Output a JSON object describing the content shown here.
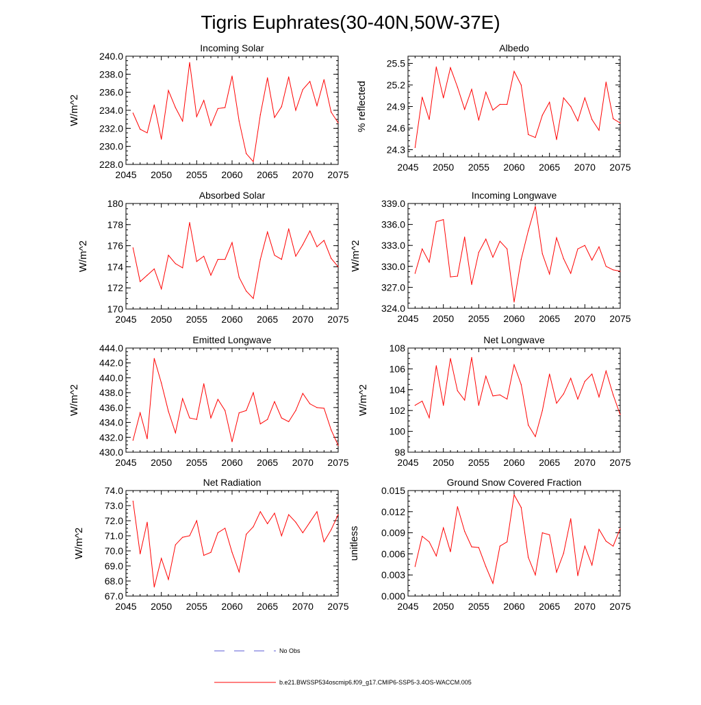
{
  "figure_title": "Tigris Euphrates(30-40N,50W-37E)",
  "legend": {
    "entries": [
      {
        "label": "No Obs",
        "color": "#5b5bd6",
        "style": "dashed"
      },
      {
        "label": "b.e21.BWSSP534oscmip6.f09_g17.CMIP6-SSP5-3.4OS-WACCM.005",
        "color": "#ff0000",
        "style": "solid"
      }
    ]
  },
  "chart_data": [
    {
      "type": "line",
      "title": "Incoming Solar",
      "ylabel": "W/m^2",
      "xlim": [
        2045,
        2075
      ],
      "ylim": [
        228.0,
        240.0
      ],
      "xticks": [
        2045,
        2050,
        2055,
        2060,
        2065,
        2070,
        2075
      ],
      "yticks": [
        228.0,
        230.0,
        232.0,
        234.0,
        236.0,
        238.0,
        240.0
      ],
      "ytick_labels": [
        "228.0",
        "230.0",
        "232.0",
        "234.0",
        "236.0",
        "238.0",
        "240.0"
      ],
      "x": [
        2046,
        2047,
        2048,
        2049,
        2050,
        2051,
        2052,
        2053,
        2054,
        2055,
        2056,
        2057,
        2058,
        2059,
        2060,
        2061,
        2062,
        2063,
        2064,
        2065,
        2066,
        2067,
        2068,
        2069,
        2070,
        2071,
        2072,
        2073,
        2074,
        2075
      ],
      "values": [
        233.7,
        231.9,
        231.5,
        234.6,
        230.8,
        236.2,
        234.3,
        232.8,
        239.3,
        233.3,
        235.1,
        232.3,
        234.2,
        234.3,
        237.8,
        232.8,
        229.2,
        228.3,
        233.5,
        237.6,
        233.2,
        234.4,
        237.7,
        234.0,
        236.3,
        237.2,
        234.5,
        237.4,
        233.8,
        232.6
      ]
    },
    {
      "type": "line",
      "title": "Albedo",
      "ylabel": "% reflected",
      "xlim": [
        2045,
        2075
      ],
      "ylim": [
        24.2,
        25.6
      ],
      "xticks": [
        2045,
        2050,
        2055,
        2060,
        2065,
        2070,
        2075
      ],
      "yticks": [
        24.3,
        24.6,
        24.9,
        25.2,
        25.5
      ],
      "ytick_labels": [
        "24.3",
        "24.6",
        "24.9",
        "25.2",
        "25.5"
      ],
      "x": [
        2046,
        2047,
        2048,
        2049,
        2050,
        2051,
        2052,
        2053,
        2054,
        2055,
        2056,
        2057,
        2058,
        2059,
        2060,
        2061,
        2062,
        2063,
        2064,
        2065,
        2066,
        2067,
        2068,
        2069,
        2070,
        2071,
        2072,
        2073,
        2074,
        2075
      ],
      "values": [
        24.33,
        25.03,
        24.72,
        25.45,
        25.02,
        25.44,
        25.17,
        24.86,
        25.14,
        24.71,
        25.1,
        24.85,
        24.93,
        24.93,
        25.39,
        25.2,
        24.51,
        24.47,
        24.78,
        24.96,
        24.44,
        25.02,
        24.9,
        24.7,
        25.02,
        24.72,
        24.57,
        25.24,
        24.73,
        24.67
      ]
    },
    {
      "type": "line",
      "title": "Absorbed Solar",
      "ylabel": "W/m^2",
      "xlim": [
        2045,
        2075
      ],
      "ylim": [
        170,
        180
      ],
      "xticks": [
        2045,
        2050,
        2055,
        2060,
        2065,
        2070,
        2075
      ],
      "yticks": [
        170,
        172,
        174,
        176,
        178,
        180
      ],
      "ytick_labels": [
        "170",
        "172",
        "174",
        "176",
        "178",
        "180"
      ],
      "x": [
        2046,
        2047,
        2048,
        2049,
        2050,
        2051,
        2052,
        2053,
        2054,
        2055,
        2056,
        2057,
        2058,
        2059,
        2060,
        2061,
        2062,
        2063,
        2064,
        2065,
        2066,
        2067,
        2068,
        2069,
        2070,
        2071,
        2072,
        2073,
        2074,
        2075
      ],
      "values": [
        175.8,
        172.6,
        173.2,
        173.8,
        171.9,
        175.1,
        174.3,
        173.9,
        178.2,
        174.5,
        175.0,
        173.2,
        174.7,
        174.7,
        176.3,
        173.0,
        171.7,
        171.0,
        174.7,
        177.3,
        175.1,
        174.7,
        177.6,
        175.0,
        176.1,
        177.4,
        175.9,
        176.5,
        174.8,
        174.0
      ]
    },
    {
      "type": "line",
      "title": "Incoming Longwave",
      "ylabel": "W/m^2",
      "xlim": [
        2045,
        2075
      ],
      "ylim": [
        324.0,
        339.0
      ],
      "xticks": [
        2045,
        2050,
        2055,
        2060,
        2065,
        2070,
        2075
      ],
      "yticks": [
        324.0,
        327.0,
        330.0,
        333.0,
        336.0,
        339.0
      ],
      "ytick_labels": [
        "324.0",
        "327.0",
        "330.0",
        "333.0",
        "336.0",
        "339.0"
      ],
      "x": [
        2046,
        2047,
        2048,
        2049,
        2050,
        2051,
        2052,
        2053,
        2054,
        2055,
        2056,
        2057,
        2058,
        2059,
        2060,
        2061,
        2062,
        2063,
        2064,
        2065,
        2066,
        2067,
        2068,
        2069,
        2070,
        2071,
        2072,
        2073,
        2074,
        2075
      ],
      "values": [
        329.0,
        332.5,
        330.6,
        336.4,
        336.7,
        328.5,
        328.6,
        334.2,
        327.4,
        332.0,
        333.9,
        331.3,
        333.6,
        332.5,
        324.9,
        331.0,
        335.1,
        338.6,
        331.8,
        328.9,
        334.1,
        331.1,
        329.0,
        332.5,
        333.0,
        330.9,
        332.8,
        330.0,
        329.5,
        329.3
      ]
    },
    {
      "type": "line",
      "title": "Emitted Longwave",
      "ylabel": "W/m^2",
      "xlim": [
        2045,
        2075
      ],
      "ylim": [
        430.0,
        444.0
      ],
      "xticks": [
        2045,
        2050,
        2055,
        2060,
        2065,
        2070,
        2075
      ],
      "yticks": [
        430.0,
        432.0,
        434.0,
        436.0,
        438.0,
        440.0,
        442.0,
        444.0
      ],
      "ytick_labels": [
        "430.0",
        "432.0",
        "434.0",
        "436.0",
        "438.0",
        "440.0",
        "442.0",
        "444.0"
      ],
      "x": [
        2046,
        2047,
        2048,
        2049,
        2050,
        2051,
        2052,
        2053,
        2054,
        2055,
        2056,
        2057,
        2058,
        2059,
        2060,
        2061,
        2062,
        2063,
        2064,
        2065,
        2066,
        2067,
        2068,
        2069,
        2070,
        2071,
        2072,
        2073,
        2074,
        2075
      ],
      "values": [
        431.6,
        435.3,
        431.8,
        442.6,
        439.3,
        435.5,
        432.6,
        437.2,
        434.6,
        434.4,
        439.2,
        434.6,
        437.1,
        435.6,
        431.4,
        435.3,
        435.6,
        438.0,
        433.8,
        434.4,
        436.8,
        434.6,
        434.1,
        435.6,
        437.9,
        436.5,
        436.0,
        435.9,
        433.0,
        430.9
      ]
    },
    {
      "type": "line",
      "title": "Net Longwave",
      "ylabel": "W/m^2",
      "xlim": [
        2045,
        2075
      ],
      "ylim": [
        98,
        108
      ],
      "xticks": [
        2045,
        2050,
        2055,
        2060,
        2065,
        2070,
        2075
      ],
      "yticks": [
        98,
        100,
        102,
        104,
        106,
        108
      ],
      "ytick_labels": [
        "98",
        "100",
        "102",
        "104",
        "106",
        "108"
      ],
      "x": [
        2046,
        2047,
        2048,
        2049,
        2050,
        2051,
        2052,
        2053,
        2054,
        2055,
        2056,
        2057,
        2058,
        2059,
        2060,
        2061,
        2062,
        2063,
        2064,
        2065,
        2066,
        2067,
        2068,
        2069,
        2070,
        2071,
        2072,
        2073,
        2074,
        2075
      ],
      "values": [
        102.5,
        102.9,
        101.3,
        106.3,
        102.5,
        107.0,
        103.9,
        103.0,
        107.1,
        102.5,
        105.3,
        103.4,
        103.5,
        103.1,
        106.4,
        104.5,
        100.6,
        99.5,
        102.0,
        105.5,
        102.7,
        103.6,
        105.1,
        103.1,
        104.8,
        105.5,
        103.3,
        105.8,
        103.5,
        101.6
      ]
    },
    {
      "type": "line",
      "title": "Net Radiation",
      "ylabel": "W/m^2",
      "xlim": [
        2045,
        2075
      ],
      "ylim": [
        67.0,
        74.0
      ],
      "xticks": [
        2045,
        2050,
        2055,
        2060,
        2065,
        2070,
        2075
      ],
      "yticks": [
        67.0,
        68.0,
        69.0,
        70.0,
        71.0,
        72.0,
        73.0,
        74.0
      ],
      "ytick_labels": [
        "67.0",
        "68.0",
        "69.0",
        "70.0",
        "71.0",
        "72.0",
        "73.0",
        "74.0"
      ],
      "x": [
        2046,
        2047,
        2048,
        2049,
        2050,
        2051,
        2052,
        2053,
        2054,
        2055,
        2056,
        2057,
        2058,
        2059,
        2060,
        2061,
        2062,
        2063,
        2064,
        2065,
        2066,
        2067,
        2068,
        2069,
        2070,
        2071,
        2072,
        2073,
        2074,
        2075
      ],
      "values": [
        73.3,
        69.8,
        71.9,
        67.6,
        69.5,
        68.1,
        70.4,
        70.9,
        71.0,
        72.0,
        69.7,
        69.9,
        71.2,
        71.5,
        69.9,
        68.6,
        71.1,
        71.6,
        72.6,
        71.8,
        72.5,
        71.0,
        72.4,
        71.9,
        71.2,
        71.9,
        72.6,
        70.6,
        71.4,
        72.4
      ]
    },
    {
      "type": "line",
      "title": "Ground Snow Covered Fraction",
      "ylabel": "unitless",
      "xlim": [
        2045,
        2075
      ],
      "ylim": [
        0.0,
        0.015
      ],
      "xticks": [
        2045,
        2050,
        2055,
        2060,
        2065,
        2070,
        2075
      ],
      "yticks": [
        0.0,
        0.003,
        0.006,
        0.009,
        0.012,
        0.015
      ],
      "ytick_labels": [
        "0.000",
        "0.003",
        "0.006",
        "0.009",
        "0.012",
        "0.015"
      ],
      "x": [
        2046,
        2047,
        2048,
        2049,
        2050,
        2051,
        2052,
        2053,
        2054,
        2055,
        2056,
        2057,
        2058,
        2059,
        2060,
        2061,
        2062,
        2063,
        2064,
        2065,
        2066,
        2067,
        2068,
        2069,
        2070,
        2071,
        2072,
        2073,
        2074,
        2075
      ],
      "values": [
        0.0042,
        0.0085,
        0.0077,
        0.0057,
        0.0097,
        0.0063,
        0.0127,
        0.0092,
        0.007,
        0.0069,
        0.0042,
        0.0018,
        0.0071,
        0.0077,
        0.0144,
        0.0126,
        0.0055,
        0.003,
        0.009,
        0.0087,
        0.0034,
        0.0061,
        0.011,
        0.0029,
        0.0071,
        0.0044,
        0.0095,
        0.0078,
        0.0071,
        0.0096
      ]
    }
  ]
}
